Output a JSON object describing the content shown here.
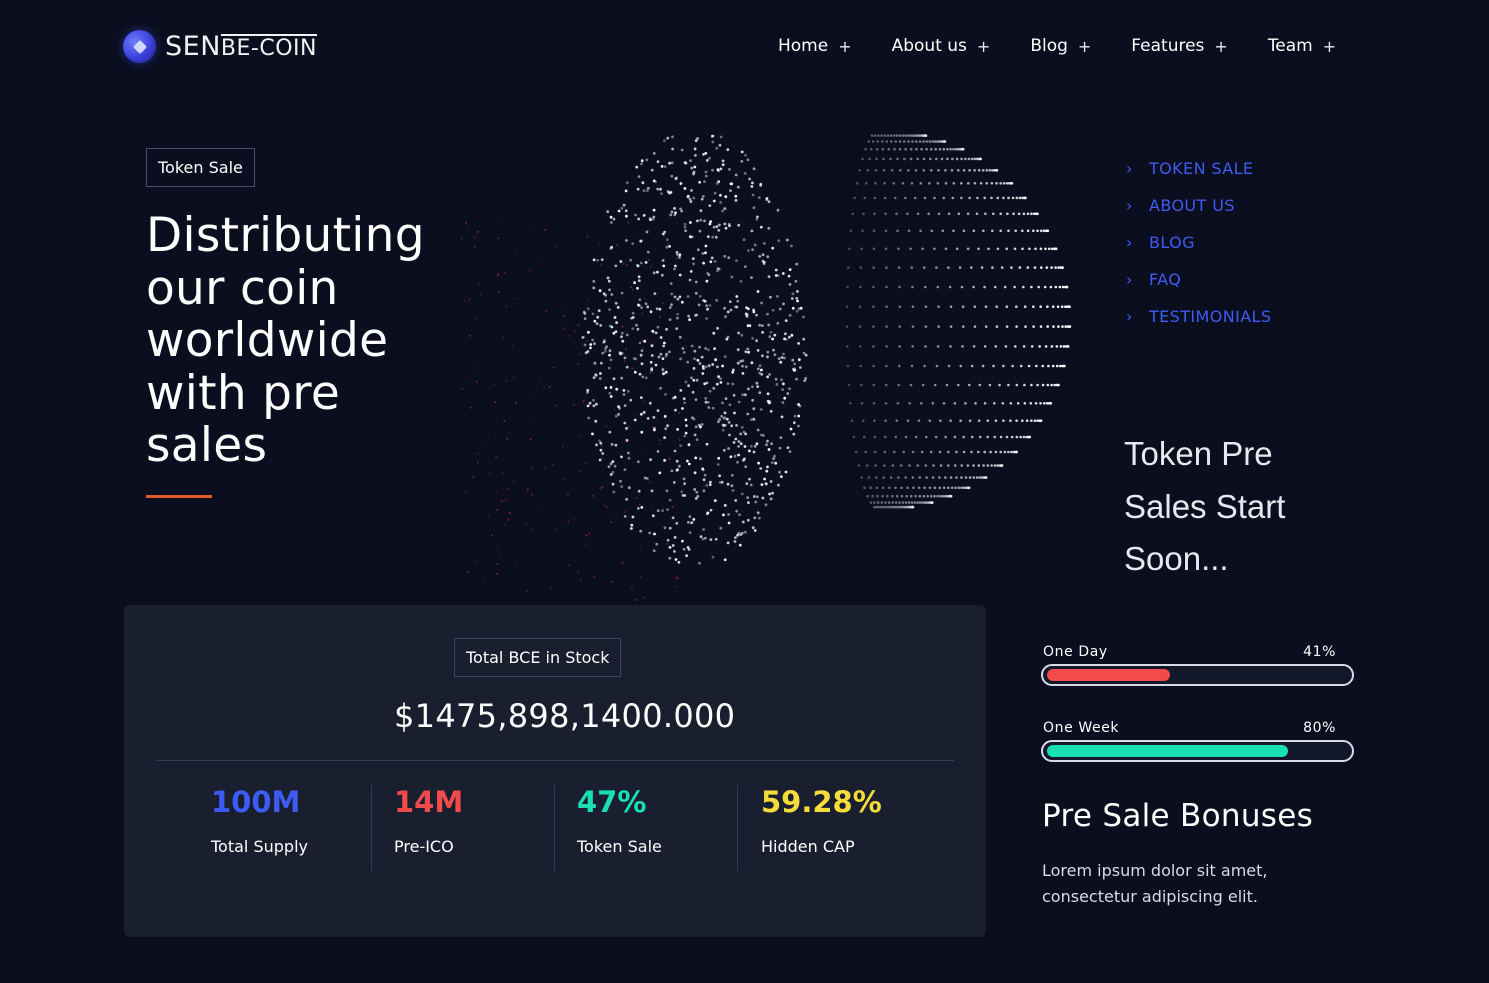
{
  "header": {
    "logo_main": "SEN",
    "logo_sub": "BE-COIN",
    "nav": [
      {
        "label": "Home",
        "icon": "+"
      },
      {
        "label": "About us",
        "icon": "+"
      },
      {
        "label": "Blog",
        "icon": "+"
      },
      {
        "label": "Features",
        "icon": "+"
      },
      {
        "label": "Team",
        "icon": "+"
      }
    ]
  },
  "hero": {
    "badge": "Token Sale",
    "title": "Distributing our coin worldwide with pre sales",
    "accent_color": "#e35b2c"
  },
  "side_nav": {
    "items": [
      {
        "label": "TOKEN SALE"
      },
      {
        "label": "ABOUT US"
      },
      {
        "label": "BLOG"
      },
      {
        "label": "FAQ"
      },
      {
        "label": "TESTIMONIALS"
      }
    ],
    "link_color": "#3d5cf5"
  },
  "presale": {
    "title": "Token Pre Sales Start Soon..."
  },
  "stats_card": {
    "badge": "Total BCE in Stock",
    "amount": "$1475,898,1400.000",
    "stats": [
      {
        "value": "100M",
        "label": "Total Supply",
        "color": "#3d5cf5"
      },
      {
        "value": "14M",
        "label": "Pre-ICO",
        "color": "#f24b4b"
      },
      {
        "value": "47%",
        "label": "Token Sale",
        "color": "#19e0b4"
      },
      {
        "value": "59.28%",
        "label": "Hidden CAP",
        "color": "#f5dc3a"
      }
    ]
  },
  "progress": [
    {
      "label": "One Day",
      "percent_text": "41%",
      "value": 0.41,
      "color": "#f24b4b"
    },
    {
      "label": "One Week",
      "percent_text": "80%",
      "value": 0.8,
      "color": "#19e0b4"
    }
  ],
  "bonus": {
    "title": "Pre Sale Bonuses",
    "text": "Lorem ipsum dolor sit amet, consectetur adipiscing elit."
  }
}
